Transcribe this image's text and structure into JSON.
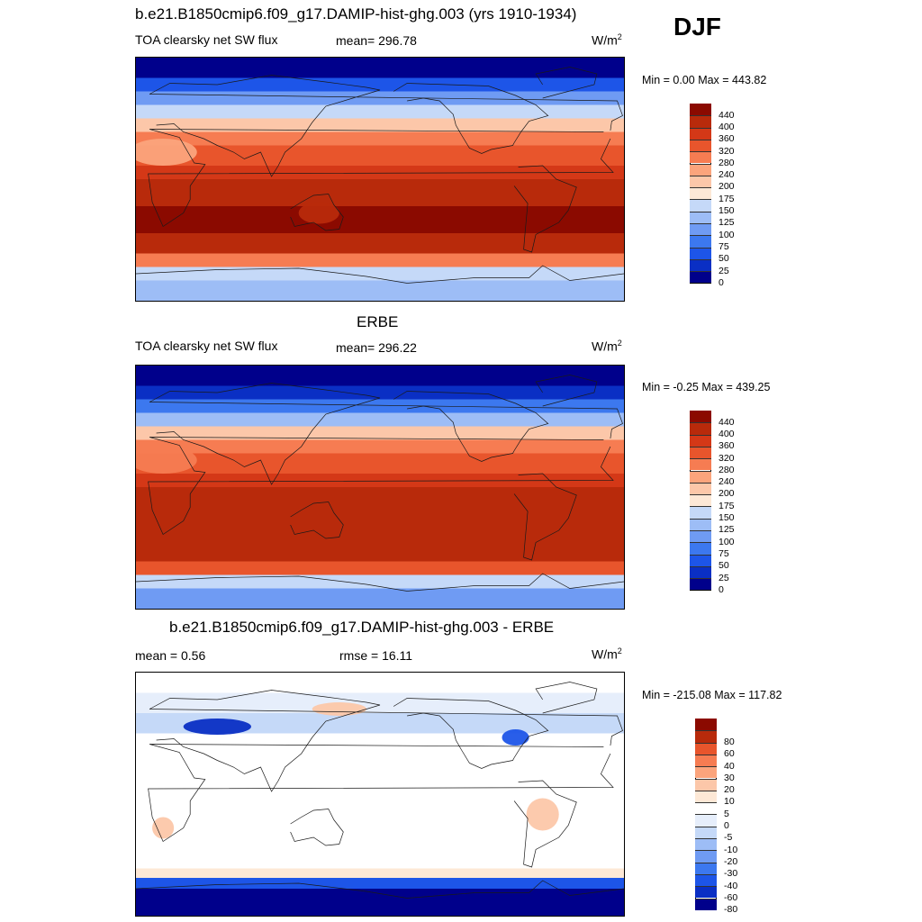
{
  "season": "DJF",
  "colors": {
    "flux": [
      "#00008b",
      "#0a2fc4",
      "#1d55e8",
      "#3c78ef",
      "#6f9bf3",
      "#9dbdf6",
      "#c5d9f8",
      "#fde8d6",
      "#fcc7a9",
      "#fba47c",
      "#f67c52",
      "#e8552c",
      "#d43817",
      "#b82a0b",
      "#8b0a00"
    ],
    "diff": [
      "#00008b",
      "#0a2fc4",
      "#1d55e8",
      "#3c78ef",
      "#6f9bf3",
      "#9dbdf6",
      "#c5d9f8",
      "#e6eefb",
      "#ffffff",
      "#fde8d6",
      "#fcc7a9",
      "#fba47c",
      "#f67c52",
      "#e8552c",
      "#b82a0b",
      "#8b0a00"
    ]
  },
  "panels": [
    {
      "title": "b.e21.B1850cmip6.f09_g17.DAMIP-hist-ghg.003 (yrs 1910-1934)",
      "left_label": "TOA clearsky net SW flux",
      "center_label": "mean= 296.78",
      "units": "W/m",
      "units_sup": "2",
      "minmax": "Min =   0.00 Max = 443.82"
    },
    {
      "title": "ERBE",
      "left_label": "TOA clearsky net SW flux",
      "center_label": "mean= 296.22",
      "units": "W/m",
      "units_sup": "2",
      "minmax": "Min =  -0.25 Max = 439.25"
    },
    {
      "title": "b.e21.B1850cmip6.f09_g17.DAMIP-hist-ghg.003 - ERBE",
      "left_label": "mean =   0.56",
      "center_label": "rmse =  16.11",
      "units": "W/m",
      "units_sup": "2",
      "minmax": "Min = -215.08 Max = 117.82"
    }
  ],
  "chart_data": [
    {
      "type": "heatmap",
      "title": "b.e21.B1850cmip6.f09_g17.DAMIP-hist-ghg.003 (yrs 1910-1934)",
      "variable": "TOA clearsky net SW flux",
      "units": "W/m2",
      "mean": 296.78,
      "min": 0.0,
      "max": 443.82,
      "levels": [
        0,
        25,
        50,
        75,
        100,
        125,
        150,
        175,
        200,
        240,
        280,
        320,
        360,
        400,
        440
      ],
      "zonal_bands": [
        {
          "lat": 90,
          "level": 0
        },
        {
          "lat": 75,
          "level": 50
        },
        {
          "lat": 65,
          "level": 100
        },
        {
          "lat": 55,
          "level": 150
        },
        {
          "lat": 45,
          "level": 200
        },
        {
          "lat": 35,
          "level": 280
        },
        {
          "lat": 25,
          "level": 320
        },
        {
          "lat": 10,
          "level": 360
        },
        {
          "lat": 0,
          "level": 400
        },
        {
          "lat": -20,
          "level": 440
        },
        {
          "lat": -40,
          "level": 400
        },
        {
          "lat": -55,
          "level": 280
        },
        {
          "lat": -65,
          "level": 150
        },
        {
          "lat": -75,
          "level": 125
        },
        {
          "lat": -90,
          "level": 125
        }
      ]
    },
    {
      "type": "heatmap",
      "title": "ERBE",
      "variable": "TOA clearsky net SW flux",
      "units": "W/m2",
      "mean": 296.22,
      "min": -0.25,
      "max": 439.25,
      "levels": [
        0,
        25,
        50,
        75,
        100,
        125,
        150,
        175,
        200,
        240,
        280,
        320,
        360,
        400,
        440
      ],
      "zonal_bands": [
        {
          "lat": 90,
          "level": 0
        },
        {
          "lat": 75,
          "level": 25
        },
        {
          "lat": 65,
          "level": 75
        },
        {
          "lat": 55,
          "level": 125
        },
        {
          "lat": 45,
          "level": 200
        },
        {
          "lat": 35,
          "level": 280
        },
        {
          "lat": 25,
          "level": 320
        },
        {
          "lat": 10,
          "level": 360
        },
        {
          "lat": 0,
          "level": 400
        },
        {
          "lat": -20,
          "level": 400
        },
        {
          "lat": -40,
          "level": 400
        },
        {
          "lat": -55,
          "level": 320
        },
        {
          "lat": -65,
          "level": 150
        },
        {
          "lat": -75,
          "level": 100
        },
        {
          "lat": -90,
          "level": 100
        }
      ]
    },
    {
      "type": "heatmap",
      "title": "b.e21.B1850cmip6.f09_g17.DAMIP-hist-ghg.003 - ERBE",
      "variable": "TOA clearsky net SW flux difference",
      "units": "W/m2",
      "mean": 0.56,
      "rmse": 16.11,
      "min": -215.08,
      "max": 117.82,
      "levels": [
        -80,
        -60,
        -40,
        -30,
        -20,
        -10,
        -5,
        0,
        5,
        10,
        20,
        30,
        40,
        60,
        80
      ],
      "zonal_bands": [
        {
          "lat": 90,
          "level": 5
        },
        {
          "lat": 75,
          "level": 0
        },
        {
          "lat": 60,
          "level": -5
        },
        {
          "lat": 45,
          "level": 5
        },
        {
          "lat": 30,
          "level": 5
        },
        {
          "lat": 15,
          "level": 5
        },
        {
          "lat": 0,
          "level": 5
        },
        {
          "lat": -20,
          "level": 5
        },
        {
          "lat": -40,
          "level": 5
        },
        {
          "lat": -55,
          "level": 10
        },
        {
          "lat": -62,
          "level": -40
        },
        {
          "lat": -70,
          "level": -80
        },
        {
          "lat": -90,
          "level": 0
        }
      ]
    }
  ]
}
